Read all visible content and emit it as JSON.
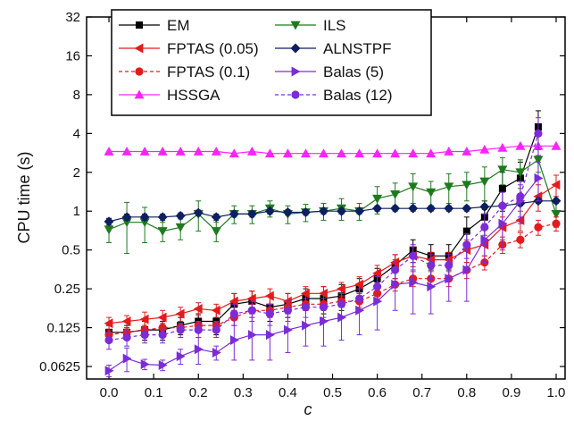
{
  "chart_data": {
    "type": "line",
    "xlabel": "c",
    "ylabel": "CPU time (s)",
    "yscale": "log2",
    "xlim": [
      -0.05,
      1.02
    ],
    "ylim": [
      0.05,
      32
    ],
    "x_ticks": [
      0.0,
      0.1,
      0.2,
      0.3,
      0.4,
      0.5,
      0.6,
      0.7,
      0.8,
      0.9,
      1.0
    ],
    "x_tick_labels": [
      "0.0",
      "0.1",
      "0.2",
      "0.3",
      "0.4",
      "0.5",
      "0.6",
      "0.7",
      "0.8",
      "0.9",
      "1.0"
    ],
    "y_ticks": [
      0.0625,
      0.125,
      0.25,
      0.5,
      1,
      2,
      4,
      8,
      16,
      32
    ],
    "y_tick_labels": [
      "0.0625",
      "0.125",
      "0.25",
      "0.5",
      "1",
      "2",
      "4",
      "8",
      "16",
      "32"
    ],
    "legend_position": "top-left",
    "legend_order": [
      "EM",
      "ILS",
      "FPTAS (0.05)",
      "ALNSTPF",
      "FPTAS (0.1)",
      "Balas (5)",
      "HSSGA",
      "Balas (12)"
    ],
    "x": [
      0.0,
      0.04,
      0.08,
      0.12,
      0.16,
      0.2,
      0.24,
      0.28,
      0.32,
      0.36,
      0.4,
      0.44,
      0.48,
      0.52,
      0.56,
      0.6,
      0.64,
      0.68,
      0.72,
      0.76,
      0.8,
      0.84,
      0.88,
      0.92,
      0.96,
      1.0
    ],
    "series": [
      {
        "name": "EM",
        "color": "#000000",
        "marker": "square",
        "dash": "solid",
        "values": [
          0.115,
          0.115,
          0.12,
          0.12,
          0.13,
          0.14,
          0.14,
          0.19,
          0.2,
          0.18,
          0.19,
          0.21,
          0.21,
          0.22,
          0.25,
          0.3,
          0.38,
          0.5,
          0.45,
          0.45,
          0.7,
          0.9,
          1.5,
          1.8,
          4.5,
          null
        ],
        "errors": [
          0.015,
          0.015,
          0.02,
          0.02,
          0.02,
          0.02,
          0.03,
          0.04,
          0.04,
          0.04,
          0.04,
          0.04,
          0.05,
          0.05,
          0.05,
          0.06,
          0.08,
          0.1,
          0.1,
          0.1,
          0.2,
          0.3,
          0.5,
          0.6,
          1.5,
          null
        ]
      },
      {
        "name": "ILS",
        "color": "#1e7a1e",
        "marker": "triangle-down",
        "dash": "solid",
        "values": [
          0.72,
          0.82,
          0.82,
          0.7,
          0.75,
          0.95,
          0.7,
          0.95,
          0.95,
          1.05,
          0.95,
          0.98,
          1.0,
          1.05,
          1.0,
          1.25,
          1.35,
          1.55,
          1.4,
          1.55,
          1.6,
          1.7,
          2.1,
          2.0,
          2.5,
          0.95
        ],
        "errors": [
          0.15,
          0.35,
          0.25,
          0.12,
          0.15,
          0.25,
          0.12,
          0.15,
          0.15,
          0.15,
          0.15,
          0.15,
          0.15,
          0.2,
          0.15,
          0.3,
          0.3,
          0.4,
          0.3,
          0.4,
          0.4,
          0.5,
          0.5,
          0.5,
          0.5,
          0.2
        ]
      },
      {
        "name": "FPTAS (0.05)",
        "color": "#e41a1c",
        "marker": "triangle-left",
        "dash": "solid",
        "values": [
          0.135,
          0.14,
          0.145,
          0.15,
          0.16,
          0.175,
          0.17,
          0.2,
          0.21,
          0.22,
          0.2,
          0.23,
          0.23,
          0.25,
          0.27,
          0.33,
          0.4,
          0.45,
          0.42,
          0.42,
          0.5,
          0.55,
          0.75,
          0.85,
          1.3,
          1.6
        ],
        "errors": [
          0.015,
          0.015,
          0.02,
          0.02,
          0.02,
          0.02,
          0.02,
          0.03,
          0.03,
          0.03,
          0.03,
          0.03,
          0.03,
          0.03,
          0.04,
          0.05,
          0.06,
          0.08,
          0.06,
          0.06,
          0.1,
          0.1,
          0.15,
          0.15,
          0.3,
          0.3
        ]
      },
      {
        "name": "ALNSTPF",
        "color": "#0d1f5e",
        "marker": "diamond",
        "dash": "solid",
        "values": [
          0.83,
          0.9,
          0.9,
          0.9,
          0.92,
          0.97,
          0.9,
          0.95,
          0.95,
          1.0,
          0.98,
          0.98,
          1.0,
          1.0,
          1.0,
          1.05,
          1.05,
          1.05,
          1.05,
          1.05,
          1.05,
          1.08,
          1.1,
          1.15,
          1.2,
          1.2
        ],
        "errors": [
          0.05,
          0.05,
          0.05,
          0.05,
          0.05,
          0.05,
          0.05,
          0.05,
          0.05,
          0.05,
          0.05,
          0.05,
          0.05,
          0.05,
          0.05,
          0.05,
          0.05,
          0.05,
          0.05,
          0.05,
          0.05,
          0.05,
          0.05,
          0.05,
          0.05,
          0.05
        ]
      },
      {
        "name": "FPTAS (0.1)",
        "color": "#e41a1c",
        "marker": "circle",
        "dash": "dashed",
        "values": [
          0.11,
          0.115,
          0.12,
          0.125,
          0.125,
          0.13,
          0.13,
          0.15,
          0.17,
          0.17,
          0.18,
          0.19,
          0.19,
          0.2,
          0.2,
          0.23,
          0.27,
          0.3,
          0.3,
          0.3,
          0.35,
          0.4,
          0.55,
          0.6,
          0.75,
          0.8
        ],
        "errors": [
          0.01,
          0.01,
          0.01,
          0.01,
          0.01,
          0.01,
          0.01,
          0.02,
          0.02,
          0.02,
          0.02,
          0.02,
          0.02,
          0.02,
          0.02,
          0.03,
          0.03,
          0.04,
          0.04,
          0.04,
          0.05,
          0.05,
          0.08,
          0.08,
          0.1,
          0.1
        ]
      },
      {
        "name": "Balas (5)",
        "color": "#7b2cd6",
        "marker": "triangle-right",
        "dash": "solid",
        "values": [
          0.058,
          0.072,
          0.065,
          0.064,
          0.075,
          0.085,
          0.08,
          0.1,
          0.11,
          0.11,
          0.12,
          0.13,
          0.14,
          0.15,
          0.17,
          0.2,
          0.27,
          0.28,
          0.26,
          0.3,
          0.35,
          0.6,
          0.8,
          1.2,
          1.8,
          null
        ],
        "errors": [
          0.006,
          0.015,
          0.006,
          0.006,
          0.01,
          0.02,
          0.01,
          0.03,
          0.04,
          0.04,
          0.04,
          0.04,
          0.05,
          0.05,
          0.06,
          0.08,
          0.1,
          0.12,
          0.1,
          0.1,
          0.15,
          0.2,
          0.3,
          0.4,
          0.6,
          null
        ]
      },
      {
        "name": "HSSGA",
        "color": "#ff22ff",
        "marker": "triangle-up",
        "dash": "solid",
        "values": [
          2.9,
          2.9,
          2.9,
          2.9,
          2.9,
          2.9,
          2.9,
          2.8,
          2.9,
          2.8,
          2.8,
          2.8,
          2.8,
          2.8,
          2.8,
          2.8,
          2.8,
          2.8,
          2.8,
          2.9,
          2.9,
          3.0,
          3.1,
          3.2,
          3.2,
          3.2
        ],
        "errors": null
      },
      {
        "name": "Balas (12)",
        "color": "#7b2cd6",
        "marker": "circle",
        "dash": "dashed",
        "values": [
          0.1,
          0.105,
          0.11,
          0.11,
          0.12,
          0.12,
          0.12,
          0.16,
          0.17,
          0.16,
          0.17,
          0.18,
          0.18,
          0.19,
          0.21,
          0.26,
          0.35,
          0.45,
          0.38,
          0.38,
          0.55,
          0.75,
          1.1,
          1.3,
          4.0,
          null
        ],
        "errors": [
          0.015,
          0.015,
          0.015,
          0.015,
          0.015,
          0.015,
          0.015,
          0.03,
          0.03,
          0.03,
          0.03,
          0.03,
          0.03,
          0.04,
          0.04,
          0.05,
          0.07,
          0.1,
          0.08,
          0.08,
          0.12,
          0.2,
          0.3,
          0.4,
          1.3,
          null
        ]
      }
    ]
  }
}
